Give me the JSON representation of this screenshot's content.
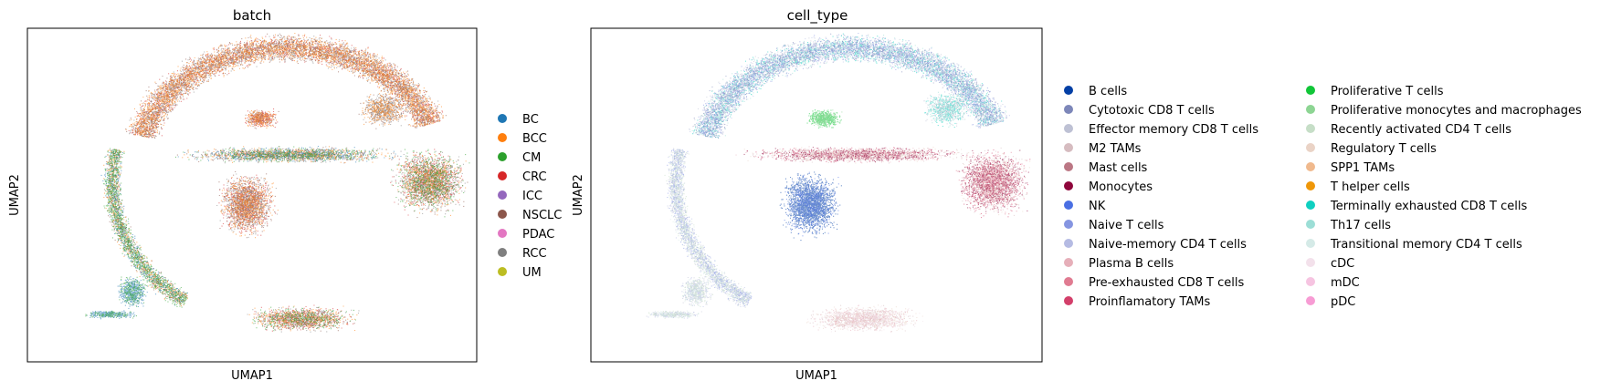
{
  "chart_data": [
    {
      "type": "scatter",
      "title": "batch",
      "xlabel": "UMAP1",
      "ylabel": "UMAP2",
      "grid": false,
      "legend_position": "right",
      "legend": [
        {
          "name": "BC",
          "color": "#1f77b4"
        },
        {
          "name": "BCC",
          "color": "#ff7f0e"
        },
        {
          "name": "CM",
          "color": "#2ca02c"
        },
        {
          "name": "CRC",
          "color": "#d62728"
        },
        {
          "name": "ICC",
          "color": "#9467bd"
        },
        {
          "name": "NSCLC",
          "color": "#8c564b"
        },
        {
          "name": "PDAC",
          "color": "#e377c2"
        },
        {
          "name": "RCC",
          "color": "#7f7f7f"
        },
        {
          "name": "UM",
          "color": "#bcbd22"
        }
      ]
    },
    {
      "type": "scatter",
      "title": "cell_type",
      "xlabel": "UMAP1",
      "ylabel": "UMAP2",
      "grid": false,
      "legend_position": "right",
      "legend_columns": 2,
      "legend": [
        {
          "name": "B cells",
          "color": "#023fa5"
        },
        {
          "name": "Cytotoxic CD8 T cells",
          "color": "#7d87b9"
        },
        {
          "name": "Effector memory CD8 T cells",
          "color": "#bec1d4"
        },
        {
          "name": "M2 TAMs",
          "color": "#d6bcc0"
        },
        {
          "name": "Mast cells",
          "color": "#bb7784"
        },
        {
          "name": "Monocytes",
          "color": "#8e063b"
        },
        {
          "name": "NK",
          "color": "#4a6fe3"
        },
        {
          "name": "Naive T cells",
          "color": "#8595e1"
        },
        {
          "name": "Naive-memory CD4 T cells",
          "color": "#b5bbe3"
        },
        {
          "name": "Plasma B cells",
          "color": "#e6afb9"
        },
        {
          "name": "Pre-exhausted CD8 T cells",
          "color": "#e07b91"
        },
        {
          "name": "Proinflamatory TAMs",
          "color": "#d33f6a"
        },
        {
          "name": "Proliferative T cells",
          "color": "#11c638"
        },
        {
          "name": "Proliferative monocytes and macrophages",
          "color": "#8dd593"
        },
        {
          "name": "Recently activated CD4 T cells",
          "color": "#c6dec7"
        },
        {
          "name": "Regulatory T cells",
          "color": "#ead3c6"
        },
        {
          "name": "SPP1 TAMs",
          "color": "#f0b98d"
        },
        {
          "name": "T helper cells",
          "color": "#ef9708"
        },
        {
          "name": "Terminally exhausted CD8 T cells",
          "color": "#0fcfc0"
        },
        {
          "name": "Th17 cells",
          "color": "#9cded6"
        },
        {
          "name": "Transitional memory CD4 T cells",
          "color": "#d5eae7"
        },
        {
          "name": "cDC",
          "color": "#f3e1eb"
        },
        {
          "name": "mDC",
          "color": "#f6c4e1"
        },
        {
          "name": "pDC",
          "color": "#f79cd4"
        }
      ]
    }
  ]
}
